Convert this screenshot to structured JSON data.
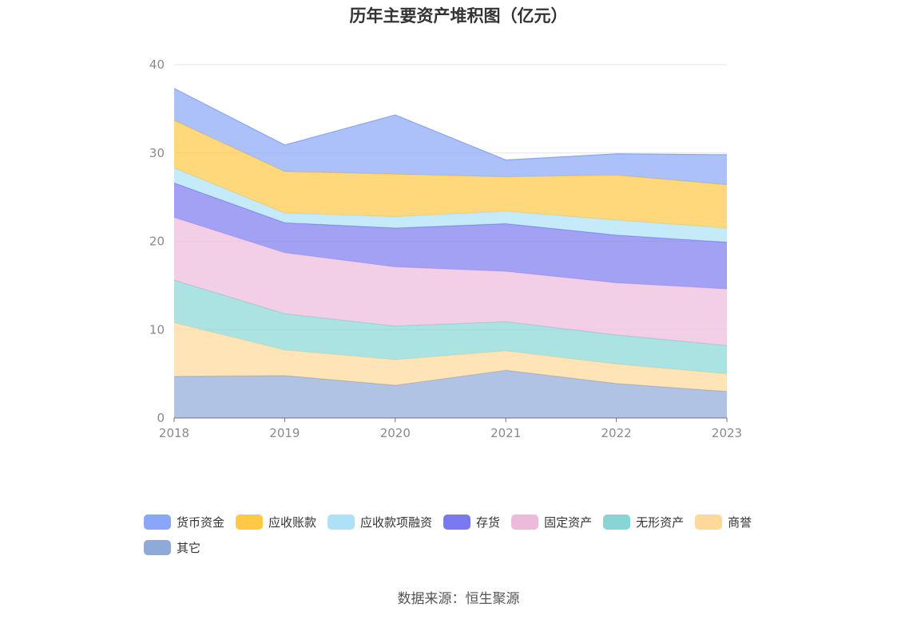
{
  "chart_data": {
    "type": "area",
    "stacked": true,
    "title": "历年主要资产堆积图（亿元）",
    "xlabel": "",
    "ylabel": "",
    "categories": [
      "2018",
      "2019",
      "2020",
      "2021",
      "2022",
      "2023"
    ],
    "ylim": [
      0,
      40
    ],
    "yticks": [
      0,
      10,
      20,
      30,
      40
    ],
    "grid": true,
    "legend_position": "bottom",
    "series": [
      {
        "name": "其它",
        "color": "#8EAAD8",
        "values": [
          4.7,
          4.8,
          3.7,
          5.4,
          3.9,
          3.0
        ]
      },
      {
        "name": "商誉",
        "color": "#FFD999",
        "values": [
          6.1,
          2.9,
          2.9,
          2.2,
          2.2,
          2.0
        ]
      },
      {
        "name": "无形资产",
        "color": "#87D5D5",
        "values": [
          4.8,
          4.1,
          3.8,
          3.3,
          3.3,
          3.2
        ]
      },
      {
        "name": "固定资产",
        "color": "#ECBBDB",
        "values": [
          7.1,
          6.9,
          6.7,
          5.7,
          5.9,
          6.4
        ]
      },
      {
        "name": "存货",
        "color": "#7B79F0",
        "values": [
          3.9,
          3.4,
          4.4,
          5.4,
          5.4,
          5.3
        ]
      },
      {
        "name": "应收款项融资",
        "color": "#ADE1F8",
        "values": [
          1.7,
          1.1,
          1.3,
          1.4,
          1.7,
          1.6
        ]
      },
      {
        "name": "应收账款",
        "color": "#FFC845",
        "values": [
          5.4,
          4.7,
          4.8,
          3.9,
          5.1,
          4.9
        ]
      },
      {
        "name": "货币资金",
        "color": "#89A6F8",
        "values": [
          3.6,
          3.0,
          6.7,
          1.9,
          2.4,
          3.4
        ]
      }
    ]
  },
  "legend_order": [
    "货币资金",
    "应收账款",
    "应收款项融资",
    "存货",
    "固定资产",
    "无形资产",
    "商誉",
    "其它"
  ],
  "source": "数据来源：恒生聚源"
}
